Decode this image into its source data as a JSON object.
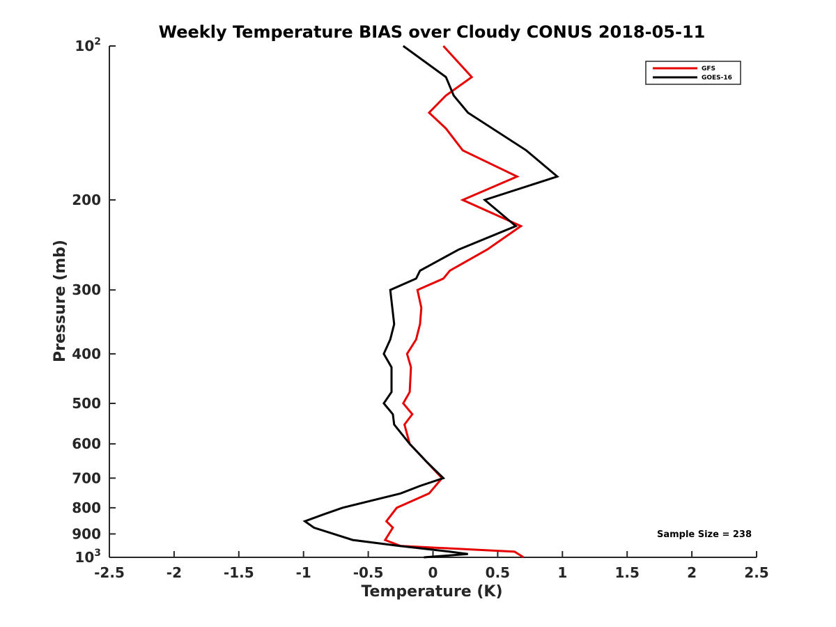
{
  "chart_data": {
    "type": "line",
    "title": "Weekly Temperature BIAS over Cloudy CONUS 2018-05-11",
    "xlabel": "Temperature (K)",
    "ylabel": "Pressure (mb)",
    "xlim": [
      -2.5,
      2.5
    ],
    "ylim": [
      100,
      1000
    ],
    "y_scale": "log",
    "y_reversed": true,
    "grid": false,
    "legend_position": "top-right",
    "x_ticks": [
      -2.5,
      -2,
      -1.5,
      -1,
      -0.5,
      0,
      0.5,
      1,
      1.5,
      2,
      2.5
    ],
    "x_tick_labels": [
      "-2.5",
      "-2",
      "-1.5",
      "-1",
      "-0.5",
      "0",
      "0.5",
      "1",
      "1.5",
      "2",
      "2.5"
    ],
    "y_ticks": [
      {
        "value": 100,
        "label": "10",
        "sup": "2"
      },
      {
        "value": 200,
        "label": "200",
        "sup": ""
      },
      {
        "value": 300,
        "label": "300",
        "sup": ""
      },
      {
        "value": 400,
        "label": "400",
        "sup": ""
      },
      {
        "value": 500,
        "label": "500",
        "sup": ""
      },
      {
        "value": 600,
        "label": "600",
        "sup": ""
      },
      {
        "value": 700,
        "label": "700",
        "sup": ""
      },
      {
        "value": 800,
        "label": "800",
        "sup": ""
      },
      {
        "value": 900,
        "label": "900",
        "sup": ""
      },
      {
        "value": 1000,
        "label": "10",
        "sup": "3"
      }
    ],
    "annotation": "Sample Size = 238",
    "series": [
      {
        "name": "GFS",
        "color": "#e60000",
        "points": [
          [
            0.08,
            100
          ],
          [
            0.3,
            115
          ],
          [
            0.1,
            125
          ],
          [
            -0.03,
            135
          ],
          [
            0.1,
            145
          ],
          [
            0.23,
            160
          ],
          [
            0.65,
            180
          ],
          [
            0.23,
            200
          ],
          [
            0.68,
            225
          ],
          [
            0.42,
            250
          ],
          [
            0.13,
            275
          ],
          [
            0.08,
            285
          ],
          [
            -0.12,
            300
          ],
          [
            -0.09,
            325
          ],
          [
            -0.1,
            350
          ],
          [
            -0.13,
            375
          ],
          [
            -0.2,
            400
          ],
          [
            -0.17,
            425
          ],
          [
            -0.18,
            475
          ],
          [
            -0.23,
            500
          ],
          [
            -0.16,
            525
          ],
          [
            -0.22,
            550
          ],
          [
            -0.18,
            600
          ],
          [
            -0.05,
            650
          ],
          [
            0.07,
            700
          ],
          [
            -0.03,
            750
          ],
          [
            -0.28,
            800
          ],
          [
            -0.36,
            850
          ],
          [
            -0.31,
            875
          ],
          [
            -0.37,
            925
          ],
          [
            -0.25,
            950
          ],
          [
            0.63,
            975
          ],
          [
            0.7,
            1000
          ]
        ]
      },
      {
        "name": "GOES-16",
        "color": "#000000",
        "points": [
          [
            -0.23,
            100
          ],
          [
            0.1,
            115
          ],
          [
            0.16,
            125
          ],
          [
            0.27,
            135
          ],
          [
            0.72,
            160
          ],
          [
            0.96,
            180
          ],
          [
            0.4,
            200
          ],
          [
            0.64,
            225
          ],
          [
            0.2,
            250
          ],
          [
            -0.1,
            275
          ],
          [
            -0.13,
            285
          ],
          [
            -0.33,
            300
          ],
          [
            -0.3,
            350
          ],
          [
            -0.33,
            375
          ],
          [
            -0.38,
            400
          ],
          [
            -0.32,
            425
          ],
          [
            -0.32,
            475
          ],
          [
            -0.38,
            500
          ],
          [
            -0.31,
            525
          ],
          [
            -0.3,
            550
          ],
          [
            -0.18,
            600
          ],
          [
            -0.05,
            650
          ],
          [
            0.08,
            700
          ],
          [
            -0.1,
            725
          ],
          [
            -0.25,
            750
          ],
          [
            -0.7,
            800
          ],
          [
            -0.85,
            825
          ],
          [
            -0.99,
            850
          ],
          [
            -0.92,
            875
          ],
          [
            -0.62,
            925
          ],
          [
            -0.26,
            950
          ],
          [
            0.13,
            975
          ],
          [
            0.27,
            985
          ],
          [
            -0.07,
            1000
          ]
        ]
      }
    ]
  }
}
